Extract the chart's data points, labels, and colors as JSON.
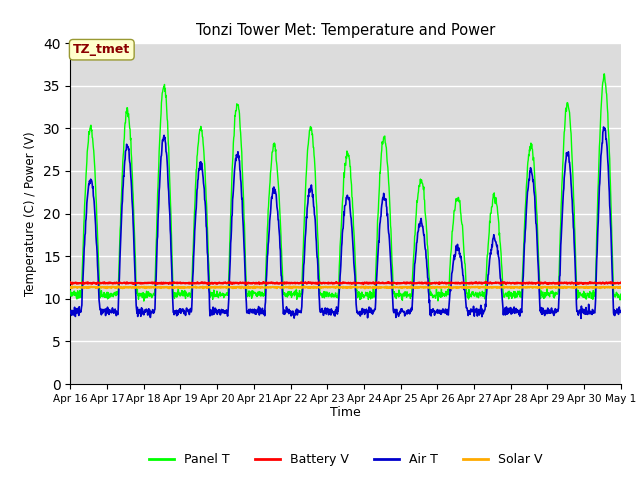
{
  "title": "Tonzi Tower Met: Temperature and Power",
  "xlabel": "Time",
  "ylabel": "Temperature (C) / Power (V)",
  "ylim": [
    0,
    40
  ],
  "yticks": [
    0,
    5,
    10,
    15,
    20,
    25,
    30,
    35,
    40
  ],
  "legend_labels": [
    "Panel T",
    "Battery V",
    "Air T",
    "Solar V"
  ],
  "legend_colors": [
    "#00ff00",
    "#ff0000",
    "#0000cc",
    "#ffaa00"
  ],
  "annotation_text": "TZ_tmet",
  "annotation_color": "#8b0000",
  "annotation_bg": "#ffffcc",
  "annotation_edge": "#999933",
  "grid_color": "#ffffff",
  "bg_color": "#dcdcdc",
  "battery_v_mean": 11.85,
  "solar_v_mean": 11.35,
  "n_days": 15,
  "pts_per_day": 96,
  "xtick_labels": [
    "Apr 16",
    "Apr 17",
    "Apr 18",
    "Apr 19",
    "Apr 20",
    "Apr 21",
    "Apr 22",
    "Apr 23",
    "Apr 24",
    "Apr 25",
    "Apr 26",
    "Apr 27",
    "Apr 28",
    "Apr 29",
    "Apr 30",
    "May 1"
  ],
  "day_peaks_panel": [
    30,
    32,
    35,
    30,
    33,
    28,
    30,
    27,
    29,
    24,
    22,
    22,
    28,
    33,
    36
  ],
  "day_peaks_air": [
    24,
    28,
    29,
    26,
    27,
    23,
    23,
    22,
    22,
    19,
    16,
    17,
    25,
    27,
    30
  ],
  "night_min_panel": 10.5,
  "night_min_air": 8.5
}
